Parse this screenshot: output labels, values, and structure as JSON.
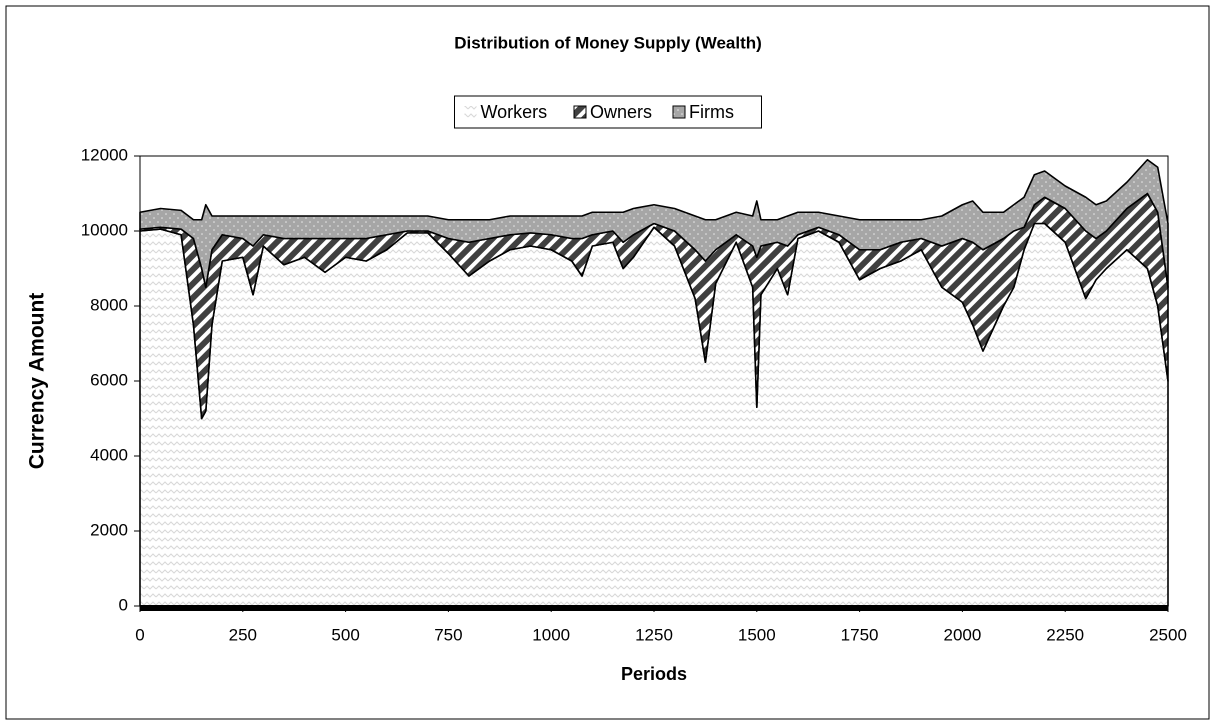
{
  "chart_data": {
    "type": "stacked_area",
    "title": "Distribution of Money Supply (Wealth)",
    "xlabel": "Periods",
    "ylabel": "Currency Amount",
    "x": [
      0,
      50,
      100,
      130,
      150,
      160,
      175,
      200,
      250,
      275,
      300,
      350,
      400,
      450,
      500,
      550,
      600,
      650,
      700,
      750,
      800,
      850,
      900,
      950,
      1000,
      1050,
      1075,
      1100,
      1150,
      1175,
      1200,
      1250,
      1300,
      1350,
      1375,
      1400,
      1450,
      1490,
      1500,
      1510,
      1550,
      1575,
      1600,
      1650,
      1700,
      1750,
      1800,
      1850,
      1900,
      1950,
      2000,
      2025,
      2050,
      2100,
      2125,
      2150,
      2175,
      2200,
      2250,
      2300,
      2325,
      2350,
      2400,
      2450,
      2475,
      2500
    ],
    "series": [
      {
        "name": "Workers",
        "color": "#d8d8d8",
        "values": [
          10000,
          10050,
          9900,
          7500,
          5000,
          5200,
          7500,
          9200,
          9300,
          8300,
          9600,
          9100,
          9300,
          8900,
          9300,
          9200,
          9500,
          9950,
          9950,
          9400,
          8800,
          9200,
          9500,
          9600,
          9500,
          9200,
          8800,
          9600,
          9700,
          9000,
          9300,
          10100,
          9600,
          8200,
          6500,
          8600,
          9700,
          8500,
          5300,
          8300,
          9000,
          8300,
          9800,
          10000,
          9700,
          8700,
          9000,
          9200,
          9500,
          8500,
          8100,
          7500,
          6800,
          8000,
          8500,
          9500,
          10200,
          10200,
          9700,
          8200,
          8700,
          9000,
          9500,
          9000,
          8000,
          6000
        ]
      },
      {
        "name": "Owners",
        "color": "#404040",
        "values": [
          50,
          50,
          150,
          2300,
          4000,
          3300,
          2000,
          700,
          500,
          1300,
          300,
          700,
          500,
          900,
          500,
          600,
          400,
          50,
          50,
          400,
          900,
          600,
          400,
          350,
          400,
          600,
          1000,
          300,
          300,
          700,
          600,
          100,
          400,
          1300,
          2700,
          900,
          200,
          1100,
          4000,
          1300,
          700,
          1300,
          100,
          100,
          200,
          800,
          500,
          500,
          300,
          1100,
          1700,
          2200,
          2700,
          1800,
          1500,
          600,
          500,
          700,
          900,
          1800,
          1100,
          1000,
          1100,
          2000,
          2500,
          2500
        ]
      },
      {
        "name": "Firms",
        "color": "#a6a6a6",
        "values": [
          450,
          500,
          500,
          500,
          1300,
          2200,
          900,
          500,
          600,
          800,
          500,
          600,
          600,
          600,
          600,
          600,
          500,
          400,
          400,
          500,
          600,
          500,
          500,
          450,
          500,
          600,
          600,
          600,
          500,
          800,
          700,
          500,
          600,
          900,
          1100,
          800,
          600,
          800,
          1500,
          700,
          600,
          800,
          600,
          400,
          500,
          800,
          800,
          600,
          500,
          800,
          900,
          1100,
          1000,
          700,
          700,
          800,
          800,
          700,
          600,
          900,
          900,
          800,
          700,
          900,
          1200,
          1700
        ]
      }
    ],
    "xlim": [
      0,
      2500
    ],
    "xticks": [
      0,
      250,
      500,
      750,
      1000,
      1250,
      1500,
      1750,
      2000,
      2250,
      2500
    ],
    "ylim": [
      0,
      12000
    ],
    "yticks": [
      0,
      2000,
      4000,
      6000,
      8000,
      10000,
      12000
    ],
    "legend": "top"
  }
}
